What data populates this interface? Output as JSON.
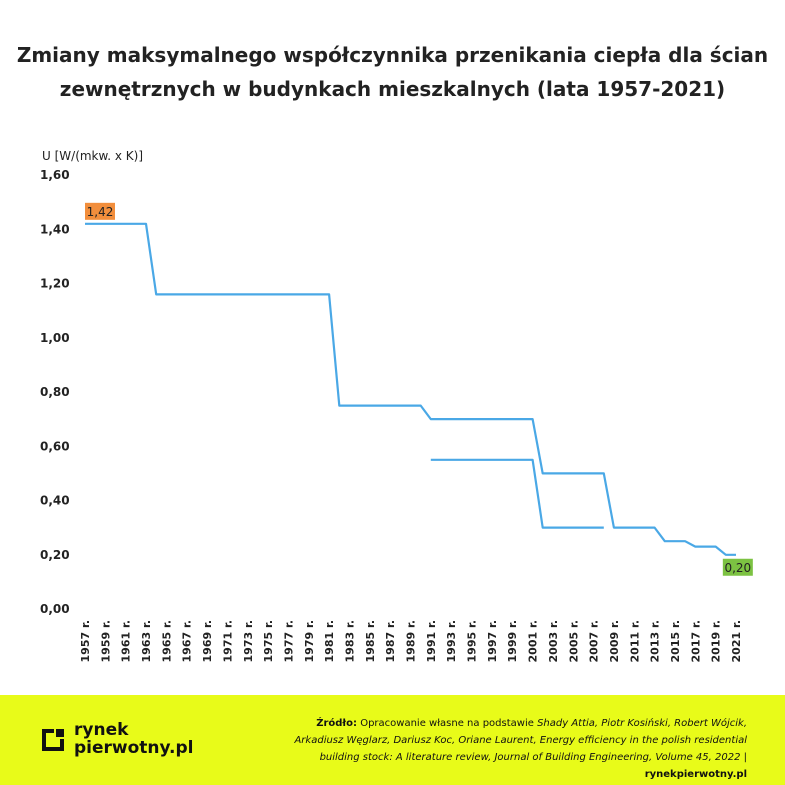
{
  "title": {
    "line1": "Zmiany maksymalnego współczynnika przenikania ciepła dla ścian",
    "line2": "zewnętrznych w budynkach mieszkalnych (lata 1957-2021)"
  },
  "chart_data": {
    "type": "line",
    "title": "Zmiany maksymalnego współczynnika przenikania ciepła dla ścian zewnętrznych w budynkach mieszkalnych (lata 1957-2021)",
    "ylabel": "U [W/(mkw. x K)]",
    "xlabel": "",
    "ylim": [
      0,
      1.6
    ],
    "xlim": [
      1957,
      2021
    ],
    "y_ticks": [
      "0,00",
      "0,20",
      "0,40",
      "0,60",
      "0,80",
      "1,00",
      "1,20",
      "1,40",
      "1,60"
    ],
    "y_tick_values": [
      0,
      0.2,
      0.4,
      0.6,
      0.8,
      1.0,
      1.2,
      1.4,
      1.6
    ],
    "x_ticks": [
      "1957 r.",
      "1959 r.",
      "1961 r.",
      "1963 r.",
      "1965 r.",
      "1967 r.",
      "1969 r.",
      "1971 r.",
      "1973 r.",
      "1975 r.",
      "1977 r.",
      "1979 r.",
      "1981 r.",
      "1983 r.",
      "1985 r.",
      "1987 r.",
      "1989 r.",
      "1991 r.",
      "1993 r.",
      "1995 r.",
      "1997 r.",
      "1999 r.",
      "2001 r.",
      "2003 r.",
      "2005 r.",
      "2007 r.",
      "2009 r.",
      "2011 r.",
      "2013 r.",
      "2015 r.",
      "2017 r.",
      "2019 r.",
      "2021 r."
    ],
    "x_tick_values": [
      1957,
      1959,
      1961,
      1963,
      1965,
      1967,
      1969,
      1971,
      1973,
      1975,
      1977,
      1979,
      1981,
      1983,
      1985,
      1987,
      1989,
      1991,
      1993,
      1995,
      1997,
      1999,
      2001,
      2003,
      2005,
      2007,
      2009,
      2011,
      2013,
      2015,
      2017,
      2019,
      2021
    ],
    "grid": false,
    "line_color": "#4aa8e6",
    "series": [
      {
        "name": "",
        "x": [
          1957,
          1963,
          1964,
          1981,
          1982,
          1990,
          1991,
          2001,
          2002,
          2008,
          2009,
          2013,
          2014,
          2016,
          2017,
          2019,
          2020,
          2021
        ],
        "y": [
          1.42,
          1.42,
          1.16,
          1.16,
          0.75,
          0.75,
          0.7,
          0.7,
          0.5,
          0.5,
          0.3,
          0.3,
          0.25,
          0.25,
          0.23,
          0.23,
          0.2,
          0.2
        ]
      },
      {
        "name": "",
        "x": [
          1991,
          2001,
          2002,
          2008
        ],
        "y": [
          0.55,
          0.55,
          0.3,
          0.3
        ]
      }
    ],
    "annotations": [
      {
        "text": "1,42",
        "x": 1957,
        "y": 1.42,
        "color": "#f28e3c"
      },
      {
        "text": "0,20",
        "x": 2020,
        "y": 0.2,
        "color": "#7cc242"
      }
    ]
  },
  "footer": {
    "background": "#e8fb19",
    "logo_line1": "rynek",
    "logo_line2": "pierwotny.pl",
    "source_label": "Źródło:",
    "source_text_1": " Opracowanie własne na podstawie ",
    "source_authors": "Shady Attia, Piotr Kosiński, Robert Wójcik,",
    "source_line2": "Arkadiusz Węglarz, Dariusz Koc, Oriane Laurent, Energy efficiency in the polish residential",
    "source_line3": "building stock: A literature review, Journal of Building Engineering, Volume 45, 2022",
    "source_sep": " | ",
    "source_site": "rynekpierwotny.pl"
  }
}
